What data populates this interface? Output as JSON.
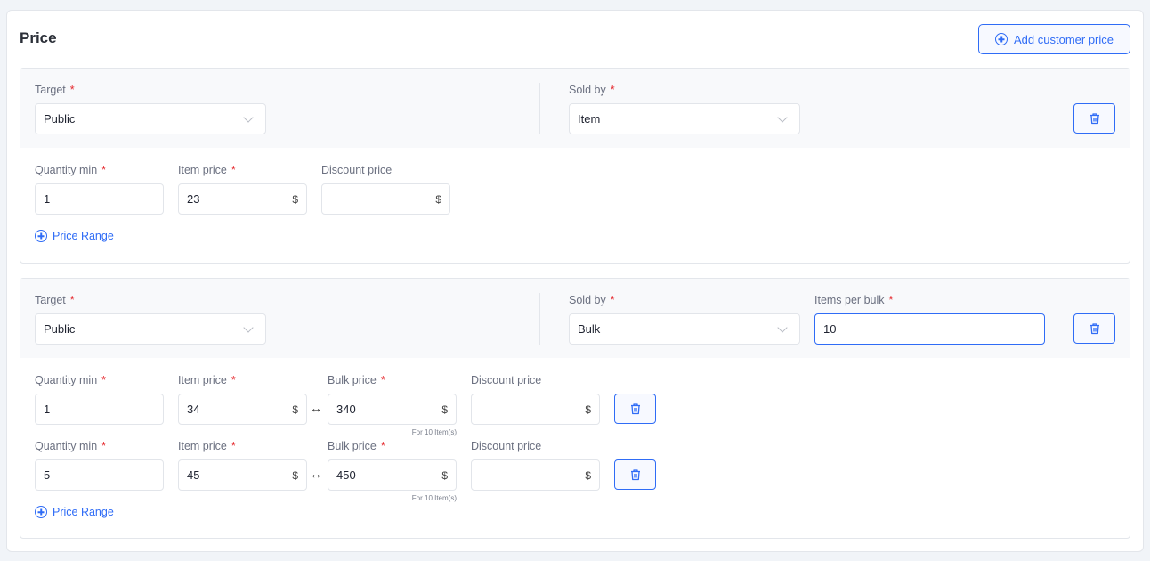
{
  "title": "Price",
  "add_button": "Add customer price",
  "required_mark": "*",
  "currency": "$",
  "arrow": "↔",
  "price_range_label": "Price Range",
  "blocks": [
    {
      "target_label": "Target",
      "target_value": "Public",
      "sold_by_label": "Sold by",
      "sold_by_value": "Item",
      "rows": [
        {
          "qty_label": "Quantity min",
          "qty": "1",
          "item_price_label": "Item price",
          "item_price": "23",
          "discount_label": "Discount price",
          "discount": ""
        }
      ]
    },
    {
      "target_label": "Target",
      "target_value": "Public",
      "sold_by_label": "Sold by",
      "sold_by_value": "Bulk",
      "items_per_bulk_label": "Items per bulk",
      "items_per_bulk": "10",
      "rows": [
        {
          "qty_label": "Quantity min",
          "qty": "1",
          "item_price_label": "Item price",
          "item_price": "34",
          "bulk_price_label": "Bulk price",
          "bulk_price": "340",
          "bulk_hint": "For 10 Item(s)",
          "discount_label": "Discount price",
          "discount": ""
        },
        {
          "qty_label": "Quantity min",
          "qty": "5",
          "item_price_label": "Item price",
          "item_price": "45",
          "bulk_price_label": "Bulk price",
          "bulk_price": "450",
          "bulk_hint": "For 10 Item(s)",
          "discount_label": "Discount price",
          "discount": ""
        }
      ]
    }
  ],
  "colors": {
    "accent": "#2f6cf6",
    "required": "#e5262b"
  },
  "icons": {
    "add": "plus-circle-icon",
    "delete": "trash-icon",
    "select": "chevron-down-icon",
    "link": "arrow-left-right-icon"
  }
}
